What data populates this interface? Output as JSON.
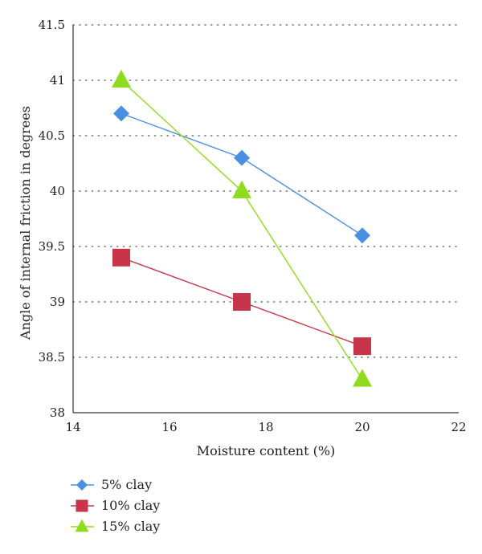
{
  "chart_data": {
    "type": "line",
    "title": "",
    "xlabel": "Moisture content (%)",
    "ylabel": "Angle of internal friction in degrees",
    "xlim": [
      14,
      22
    ],
    "ylim": [
      38,
      41.5
    ],
    "x_ticks": [
      14,
      16,
      18,
      20,
      22
    ],
    "x_tick_labels": [
      "14",
      "16",
      "18",
      "20",
      "22"
    ],
    "y_ticks": [
      38,
      38.5,
      39,
      39.5,
      40,
      40.5,
      41,
      41.5
    ],
    "y_tick_labels": [
      "38",
      "38.5",
      "39",
      "39.5",
      "40",
      "40.5",
      "41",
      "41.5"
    ],
    "grid": "horizontal-dotted",
    "legend_position": "bottom-left",
    "series": [
      {
        "name": "5% clay",
        "marker": "diamond",
        "color": "#4a90e2",
        "x": [
          15,
          17.5,
          20
        ],
        "y": [
          40.7,
          40.3,
          39.6
        ]
      },
      {
        "name": "10% clay",
        "marker": "square",
        "color": "#c8354a",
        "x": [
          15,
          17.5,
          20
        ],
        "y": [
          39.4,
          39.0,
          38.6
        ]
      },
      {
        "name": "15% clay",
        "marker": "triangle",
        "color": "#8fdc1f",
        "x": [
          15,
          17.5,
          20
        ],
        "y": [
          41.0,
          40.0,
          38.3
        ]
      }
    ]
  }
}
